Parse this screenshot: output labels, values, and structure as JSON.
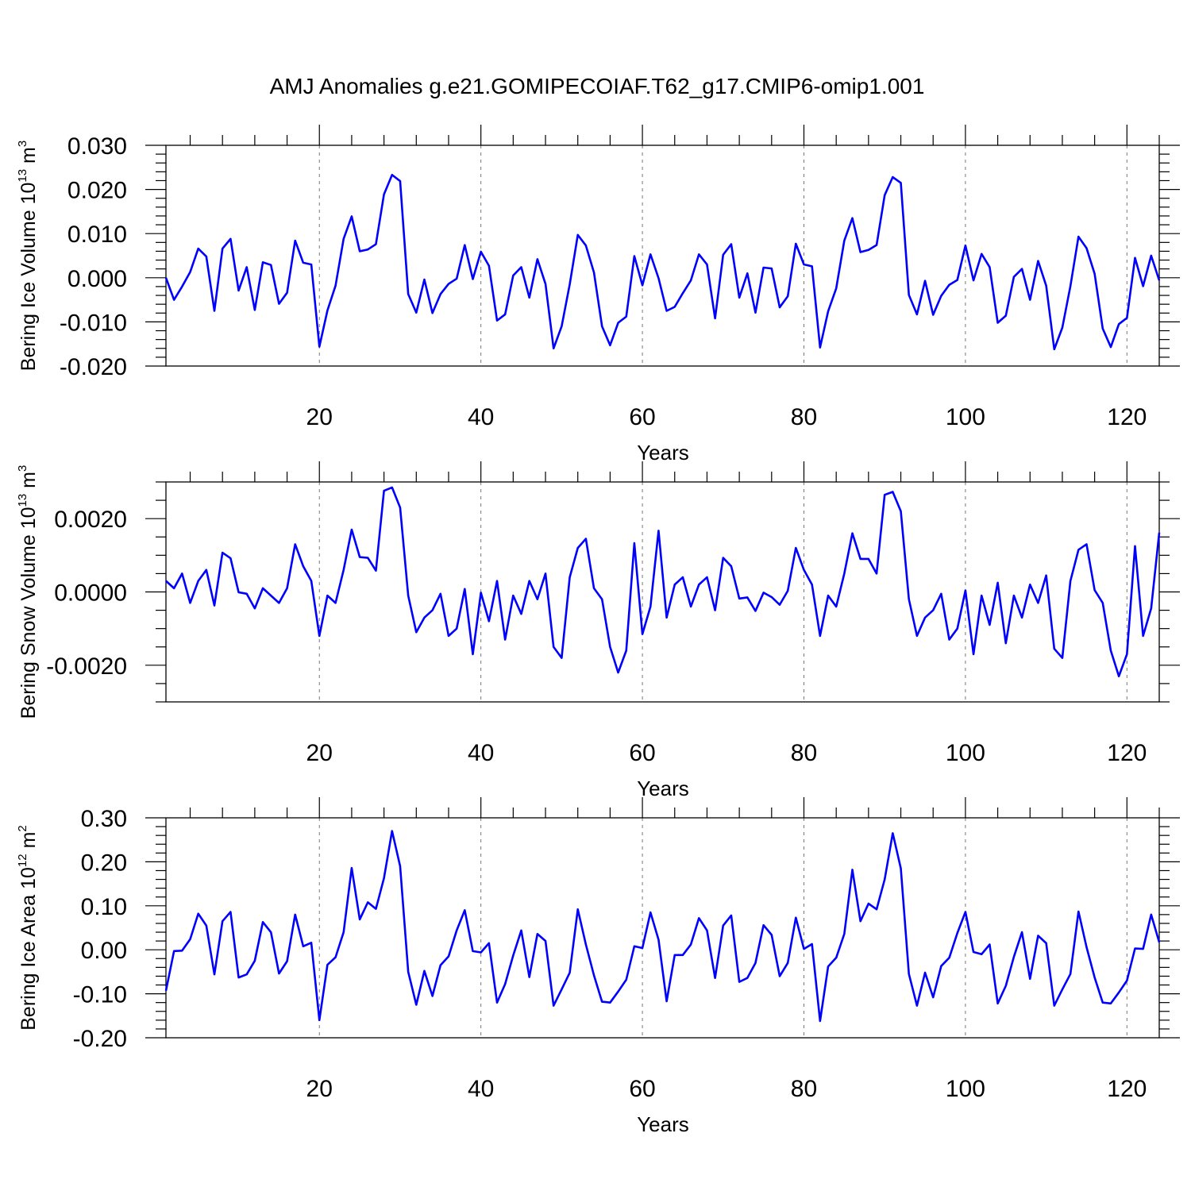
{
  "title": "AMJ Anomalies g.e21.GOMIPECOIAF.T62_g17.CMIP6-omip1.001",
  "line_color": "#0000ff",
  "chart_data": [
    {
      "type": "line",
      "xlabel": "Years",
      "ylabel": {
        "main": "Bering Ice Volume 10",
        "sup": "13",
        "unit": " m",
        "unit_sup": "3"
      },
      "xlim": [
        1,
        124
      ],
      "ylim": [
        -0.02,
        0.03
      ],
      "xticks": [
        20,
        40,
        60,
        80,
        100,
        120
      ],
      "xtick_labels": [
        "20",
        "40",
        "60",
        "80",
        "100",
        "120"
      ],
      "yticks": [
        -0.02,
        -0.01,
        0.0,
        0.01,
        0.02,
        0.03
      ],
      "ytick_labels": [
        "-0.020",
        "-0.010",
        "0.000",
        "0.010",
        "0.020",
        "0.030"
      ],
      "ytick_minor_step": 0.002,
      "grid": "dashed vertical at x ticks",
      "series": [
        {
          "values": [
            0.0,
            -0.005,
            -0.002,
            0.0013,
            0.0066,
            0.0048,
            -0.0075,
            0.0066,
            0.0088,
            -0.0029,
            0.0024,
            -0.0073,
            0.0035,
            0.0029,
            -0.0059,
            -0.0034,
            0.0084,
            0.0034,
            0.003,
            -0.0156,
            -0.0074,
            -0.0018,
            0.0088,
            0.0139,
            0.006,
            0.0064,
            0.0076,
            0.0189,
            0.0233,
            0.0219,
            -0.0037,
            -0.0079,
            -0.0004,
            -0.008,
            -0.0037,
            -0.0014,
            -0.0002,
            0.0074,
            -0.0003,
            0.0059,
            0.0027,
            -0.0097,
            -0.0083,
            0.0005,
            0.0024,
            -0.0045,
            0.0042,
            -0.0014,
            -0.016,
            -0.011,
            -0.0015,
            0.0097,
            0.0073,
            0.0012,
            -0.011,
            -0.0153,
            -0.0102,
            -0.0088,
            0.0049,
            -0.0017,
            0.0053,
            -0.0001,
            -0.0075,
            -0.0066,
            -0.0035,
            -0.0006,
            0.0053,
            0.003,
            -0.0092,
            0.0052,
            0.0076,
            -0.0045,
            0.001,
            -0.0079,
            0.0023,
            0.0021,
            -0.0067,
            -0.0042,
            0.0077,
            0.003,
            0.0026,
            -0.0158,
            -0.0076,
            -0.0024,
            0.0084,
            0.0135,
            0.0058,
            0.0063,
            0.0074,
            0.0187,
            0.0228,
            0.0215,
            -0.0039,
            -0.0083,
            -0.0007,
            -0.0084,
            -0.0041,
            -0.0016,
            -0.0005,
            0.0073,
            -0.0006,
            0.0054,
            0.0024,
            -0.0102,
            -0.0086,
            0.0002,
            0.002,
            -0.005,
            0.0038,
            -0.0018,
            -0.0162,
            -0.0113,
            -0.0019,
            0.0093,
            0.0067,
            0.0009,
            -0.0115,
            -0.0157,
            -0.0105,
            -0.0091,
            0.0045,
            -0.0019,
            0.005,
            -0.0006
          ]
        }
      ]
    },
    {
      "type": "line",
      "xlabel": "Years",
      "ylabel": {
        "main": "Bering Snow Volume 10",
        "sup": "13",
        "unit": " m",
        "unit_sup": "3"
      },
      "xlim": [
        1,
        124
      ],
      "ylim": [
        -0.003,
        0.003
      ],
      "xticks": [
        20,
        40,
        60,
        80,
        100,
        120
      ],
      "xtick_labels": [
        "20",
        "40",
        "60",
        "80",
        "100",
        "120"
      ],
      "yticks": [
        -0.002,
        0.0,
        0.002
      ],
      "ytick_labels": [
        "-0.0020",
        "0.0000",
        "0.0020"
      ],
      "ytick_minor_step": 0.0005,
      "grid": "dashed vertical at x ticks",
      "series": [
        {
          "values": [
            0.0003,
            0.0001,
            0.0005,
            -0.0003,
            0.0003,
            0.0006,
            -0.00037,
            0.00107,
            0.00092,
            -1e-05,
            -5e-05,
            -0.00045,
            0.0001,
            -0.0001,
            -0.0003,
            0.0001,
            0.0013,
            0.0007,
            0.0003,
            -0.0012,
            -0.0001,
            -0.0003,
            0.0006,
            0.0017,
            0.00095,
            0.00093,
            0.00058,
            0.00276,
            0.00285,
            0.0023,
            -0.0001,
            -0.0011,
            -0.0007,
            -0.0005,
            -5e-05,
            -0.0012,
            -0.001,
            8e-05,
            -0.0017,
            -2e-05,
            -0.0008,
            0.0003,
            -0.0013,
            -0.0001,
            -0.0006,
            0.0003,
            -0.0002,
            0.0005,
            -0.0015,
            -0.0018,
            0.0004,
            0.0012,
            0.00145,
            0.0001,
            -0.0002,
            -0.0015,
            -0.0022,
            -0.0016,
            0.00133,
            -0.00115,
            -0.0004,
            0.00167,
            -0.0007,
            0.0002,
            0.0004,
            -0.0004,
            0.0002,
            0.0004,
            -0.0005,
            0.00093,
            0.0007,
            -0.00018,
            -0.00015,
            -0.00052,
            -2e-05,
            -0.00014,
            -0.00035,
            3e-05,
            0.0012,
            0.0006,
            0.0002,
            -0.0012,
            -0.0001,
            -0.0004,
            0.0005,
            0.0016,
            0.0009,
            0.0009,
            0.0005,
            0.00265,
            0.00273,
            0.0022,
            -0.0002,
            -0.0012,
            -0.0007,
            -0.0005,
            -5e-05,
            -0.0013,
            -0.001,
            4e-05,
            -0.0017,
            -0.0001,
            -0.0009,
            0.00025,
            -0.0014,
            -0.0001,
            -0.0007,
            0.0002,
            -0.0003,
            0.00045,
            -0.00155,
            -0.0018,
            0.0003,
            0.00115,
            0.0013,
            5e-05,
            -0.0003,
            -0.0016,
            -0.0023,
            -0.0017,
            0.00125,
            -0.0012,
            -0.00045,
            0.00162
          ]
        }
      ]
    },
    {
      "type": "line",
      "xlabel": "Years",
      "ylabel": {
        "main": "Bering Ice Area 10",
        "sup": "12",
        "unit": " m",
        "unit_sup": "2"
      },
      "xlim": [
        1,
        124
      ],
      "ylim": [
        -0.2,
        0.3
      ],
      "xticks": [
        20,
        40,
        60,
        80,
        100,
        120
      ],
      "xtick_labels": [
        "20",
        "40",
        "60",
        "80",
        "100",
        "120"
      ],
      "yticks": [
        -0.2,
        -0.1,
        0.0,
        0.1,
        0.2,
        0.3
      ],
      "ytick_labels": [
        "-0.20",
        "-0.10",
        "0.00",
        "0.10",
        "0.20",
        "0.30"
      ],
      "ytick_minor_step": 0.02,
      "grid": "dashed vertical at x ticks",
      "series": [
        {
          "values": [
            -0.093,
            -0.003,
            -0.002,
            0.024,
            0.082,
            0.055,
            -0.056,
            0.065,
            0.086,
            -0.063,
            -0.056,
            -0.025,
            0.063,
            0.04,
            -0.054,
            -0.026,
            0.08,
            0.008,
            0.016,
            -0.16,
            -0.034,
            -0.017,
            0.04,
            0.186,
            0.069,
            0.108,
            0.093,
            0.163,
            0.27,
            0.19,
            -0.05,
            -0.125,
            -0.048,
            -0.105,
            -0.035,
            -0.015,
            0.044,
            0.09,
            -0.003,
            -0.006,
            0.015,
            -0.12,
            -0.078,
            -0.013,
            0.044,
            -0.062,
            0.036,
            0.02,
            -0.127,
            -0.09,
            -0.052,
            0.092,
            0.012,
            -0.058,
            -0.118,
            -0.12,
            -0.095,
            -0.068,
            0.008,
            0.004,
            0.085,
            0.023,
            -0.117,
            -0.012,
            -0.012,
            0.012,
            0.072,
            0.044,
            -0.064,
            0.055,
            0.078,
            -0.073,
            -0.064,
            -0.03,
            0.056,
            0.034,
            -0.06,
            -0.03,
            0.073,
            0.002,
            0.013,
            -0.162,
            -0.038,
            -0.018,
            0.036,
            0.182,
            0.065,
            0.105,
            0.092,
            0.16,
            0.265,
            0.185,
            -0.055,
            -0.127,
            -0.052,
            -0.108,
            -0.037,
            -0.018,
            0.038,
            0.086,
            -0.005,
            -0.01,
            0.012,
            -0.122,
            -0.082,
            -0.016,
            0.04,
            -0.066,
            0.032,
            0.015,
            -0.127,
            -0.09,
            -0.055,
            0.087,
            0.006,
            -0.063,
            -0.12,
            -0.122,
            -0.097,
            -0.07,
            0.003,
            0.002,
            0.08,
            0.017
          ]
        }
      ]
    }
  ]
}
